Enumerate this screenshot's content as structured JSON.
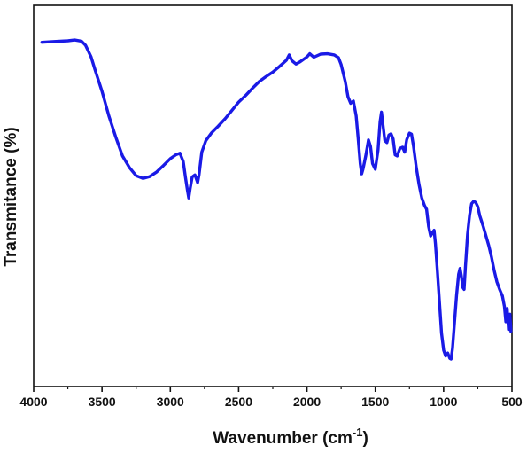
{
  "chart_data": {
    "type": "line",
    "xlabel": "Wavenumber (cm",
    "xlabel_sup": "-1",
    "xlabel_close": ")",
    "ylabel": "Transmitance (%)",
    "xlim": [
      4000,
      500
    ],
    "x_reversed": true,
    "ylim": [
      0,
      100
    ],
    "y_ticks_shown": false,
    "x_ticks": [
      4000,
      3500,
      3000,
      2500,
      2000,
      1500,
      1000,
      500
    ],
    "x_tick_labels": [
      "4000",
      "3500",
      "3000",
      "2500",
      "2000",
      "1500",
      "1000",
      "500"
    ],
    "grid": false,
    "legend": false,
    "series": [
      {
        "color": "#1a1ae6",
        "points": [
          [
            3940,
            90.3
          ],
          [
            3850,
            90.5
          ],
          [
            3750,
            90.7
          ],
          [
            3700,
            90.9
          ],
          [
            3650,
            90.6
          ],
          [
            3620,
            89.5
          ],
          [
            3580,
            86.5
          ],
          [
            3550,
            83.0
          ],
          [
            3500,
            77.5
          ],
          [
            3450,
            71.0
          ],
          [
            3400,
            65.5
          ],
          [
            3350,
            60.5
          ],
          [
            3300,
            57.5
          ],
          [
            3250,
            55.3
          ],
          [
            3200,
            54.6
          ],
          [
            3150,
            55.1
          ],
          [
            3100,
            56.3
          ],
          [
            3050,
            58.0
          ],
          [
            3000,
            59.8
          ],
          [
            2960,
            60.8
          ],
          [
            2930,
            61.2
          ],
          [
            2905,
            59.0
          ],
          [
            2890,
            55.0
          ],
          [
            2875,
            51.5
          ],
          [
            2865,
            49.5
          ],
          [
            2855,
            52.0
          ],
          [
            2840,
            55.0
          ],
          [
            2820,
            55.5
          ],
          [
            2800,
            53.5
          ],
          [
            2790,
            55.5
          ],
          [
            2770,
            61.5
          ],
          [
            2740,
            64.5
          ],
          [
            2700,
            66.5
          ],
          [
            2650,
            68.3
          ],
          [
            2600,
            70.2
          ],
          [
            2550,
            72.4
          ],
          [
            2500,
            74.6
          ],
          [
            2450,
            76.3
          ],
          [
            2400,
            78.2
          ],
          [
            2350,
            80.0
          ],
          [
            2300,
            81.3
          ],
          [
            2250,
            82.5
          ],
          [
            2200,
            84.0
          ],
          [
            2150,
            85.6
          ],
          [
            2130,
            87.0
          ],
          [
            2110,
            85.5
          ],
          [
            2080,
            84.6
          ],
          [
            2050,
            85.2
          ],
          [
            2000,
            86.5
          ],
          [
            1980,
            87.3
          ],
          [
            1950,
            86.4
          ],
          [
            1900,
            87.2
          ],
          [
            1850,
            87.3
          ],
          [
            1800,
            87.0
          ],
          [
            1770,
            86.3
          ],
          [
            1750,
            84.5
          ],
          [
            1720,
            80.0
          ],
          [
            1700,
            76.0
          ],
          [
            1680,
            74.3
          ],
          [
            1660,
            74.9
          ],
          [
            1640,
            71.0
          ],
          [
            1625,
            65.0
          ],
          [
            1610,
            58.5
          ],
          [
            1600,
            55.8
          ],
          [
            1590,
            57.0
          ],
          [
            1570,
            60.5
          ],
          [
            1550,
            64.7
          ],
          [
            1535,
            63.0
          ],
          [
            1520,
            58.5
          ],
          [
            1500,
            57.0
          ],
          [
            1480,
            62.0
          ],
          [
            1465,
            69.5
          ],
          [
            1455,
            72.0
          ],
          [
            1445,
            69.0
          ],
          [
            1430,
            64.5
          ],
          [
            1415,
            64.0
          ],
          [
            1400,
            66.0
          ],
          [
            1385,
            66.3
          ],
          [
            1370,
            65.0
          ],
          [
            1355,
            60.8
          ],
          [
            1340,
            60.5
          ],
          [
            1320,
            62.5
          ],
          [
            1300,
            62.8
          ],
          [
            1285,
            61.5
          ],
          [
            1270,
            64.8
          ],
          [
            1250,
            66.5
          ],
          [
            1235,
            66.2
          ],
          [
            1220,
            63.0
          ],
          [
            1200,
            57.5
          ],
          [
            1180,
            53.0
          ],
          [
            1160,
            49.5
          ],
          [
            1140,
            47.5
          ],
          [
            1125,
            46.5
          ],
          [
            1110,
            42.0
          ],
          [
            1095,
            39.5
          ],
          [
            1080,
            40.5
          ],
          [
            1070,
            41.0
          ],
          [
            1060,
            37.5
          ],
          [
            1045,
            30.0
          ],
          [
            1030,
            22.0
          ],
          [
            1015,
            14.0
          ],
          [
            1000,
            9.5
          ],
          [
            985,
            8.0
          ],
          [
            970,
            8.8
          ],
          [
            955,
            7.4
          ],
          [
            945,
            7.2
          ],
          [
            935,
            10.0
          ],
          [
            920,
            17.0
          ],
          [
            905,
            24.0
          ],
          [
            890,
            29.5
          ],
          [
            880,
            31.0
          ],
          [
            870,
            29.0
          ],
          [
            860,
            26.0
          ],
          [
            850,
            25.5
          ],
          [
            840,
            31.5
          ],
          [
            825,
            40.0
          ],
          [
            810,
            45.0
          ],
          [
            795,
            48.0
          ],
          [
            780,
            48.6
          ],
          [
            765,
            48.3
          ],
          [
            750,
            47.2
          ],
          [
            735,
            44.8
          ],
          [
            710,
            42.0
          ],
          [
            690,
            39.5
          ],
          [
            670,
            37.0
          ],
          [
            650,
            34.0
          ],
          [
            630,
            30.5
          ],
          [
            610,
            27.5
          ],
          [
            590,
            25.5
          ],
          [
            570,
            23.8
          ],
          [
            555,
            21.0
          ],
          [
            545,
            17.0
          ],
          [
            535,
            20.5
          ],
          [
            525,
            15.0
          ],
          [
            515,
            19.0
          ],
          [
            508,
            14.5
          ]
        ]
      }
    ]
  }
}
